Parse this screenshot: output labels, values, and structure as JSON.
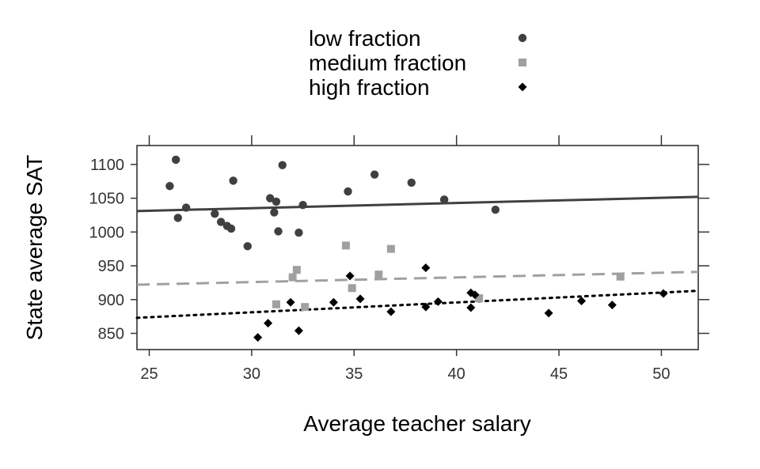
{
  "chart_data": {
    "type": "scatter",
    "xlabel": "Average teacher salary",
    "ylabel": "State average SAT",
    "xlim": [
      24.4,
      51.8
    ],
    "ylim": [
      826,
      1128
    ],
    "x_ticks": [
      25,
      30,
      35,
      40,
      45,
      50
    ],
    "y_ticks": [
      850,
      900,
      950,
      1000,
      1050,
      1100
    ],
    "grid": false,
    "legend_position": "top-center",
    "series": [
      {
        "name": "low fraction",
        "marker": "circle",
        "color": "#404040",
        "line_style": "solid",
        "fit_line": [
          [
            24.4,
            1031
          ],
          [
            51.8,
            1052
          ]
        ],
        "points": [
          [
            26.3,
            1107
          ],
          [
            26.0,
            1068
          ],
          [
            26.8,
            1036
          ],
          [
            26.4,
            1021
          ],
          [
            28.2,
            1027
          ],
          [
            28.5,
            1015
          ],
          [
            28.8,
            1009
          ],
          [
            29.0,
            1005
          ],
          [
            29.1,
            1076
          ],
          [
            29.8,
            979
          ],
          [
            30.9,
            1050
          ],
          [
            31.1,
            1029
          ],
          [
            31.2,
            1045
          ],
          [
            31.3,
            1001
          ],
          [
            31.5,
            1099
          ],
          [
            32.3,
            999
          ],
          [
            32.5,
            1040
          ],
          [
            34.7,
            1060
          ],
          [
            36.0,
            1085
          ],
          [
            37.8,
            1073
          ],
          [
            39.4,
            1048
          ],
          [
            41.9,
            1033
          ]
        ]
      },
      {
        "name": "medium fraction",
        "marker": "square",
        "color": "#a0a0a0",
        "line_style": "dashed",
        "fit_line": [
          [
            24.4,
            922
          ],
          [
            51.8,
            941
          ]
        ],
        "points": [
          [
            31.2,
            893
          ],
          [
            32.0,
            933
          ],
          [
            32.2,
            944
          ],
          [
            32.6,
            889
          ],
          [
            34.6,
            980
          ],
          [
            34.9,
            917
          ],
          [
            36.2,
            937
          ],
          [
            36.8,
            975
          ],
          [
            41.1,
            902
          ],
          [
            48.0,
            934
          ]
        ]
      },
      {
        "name": "high fraction",
        "marker": "diamond",
        "color": "#000000",
        "line_style": "dotted",
        "fit_line": [
          [
            24.4,
            873
          ],
          [
            51.8,
            913
          ]
        ],
        "points": [
          [
            30.3,
            844
          ],
          [
            30.8,
            865
          ],
          [
            31.9,
            896
          ],
          [
            32.3,
            854
          ],
          [
            34.0,
            896
          ],
          [
            34.8,
            935
          ],
          [
            35.3,
            901
          ],
          [
            36.8,
            882
          ],
          [
            38.5,
            947
          ],
          [
            38.5,
            889
          ],
          [
            39.1,
            897
          ],
          [
            40.7,
            910
          ],
          [
            40.7,
            888
          ],
          [
            40.9,
            907
          ],
          [
            44.5,
            880
          ],
          [
            46.1,
            898
          ],
          [
            47.6,
            892
          ],
          [
            50.1,
            909
          ]
        ]
      }
    ]
  }
}
